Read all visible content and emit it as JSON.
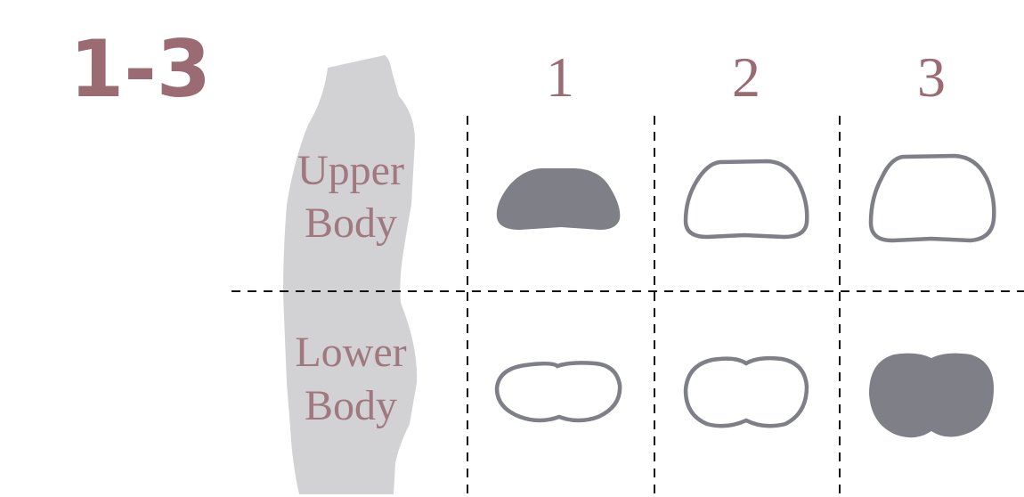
{
  "figure": {
    "code": "1-3",
    "columns": [
      "1",
      "2",
      "3"
    ],
    "rows": [
      {
        "name": "upper-body",
        "label_line1": "Upper",
        "label_line2": "Body"
      },
      {
        "name": "lower-body",
        "label_line1": "Lower",
        "label_line2": "Body"
      }
    ],
    "cells": [
      {
        "row": "upper-body",
        "column": "1",
        "style": "filled"
      },
      {
        "row": "upper-body",
        "column": "2",
        "style": "outline"
      },
      {
        "row": "upper-body",
        "column": "3",
        "style": "outline"
      },
      {
        "row": "lower-body",
        "column": "1",
        "style": "outline"
      },
      {
        "row": "lower-body",
        "column": "2",
        "style": "outline"
      },
      {
        "row": "lower-body",
        "column": "3",
        "style": "filled"
      }
    ],
    "colors": {
      "accent": "#9b6b73",
      "label": "#a07880",
      "shape": "#7e7f87",
      "silhouette": "#d2d2d5"
    }
  }
}
